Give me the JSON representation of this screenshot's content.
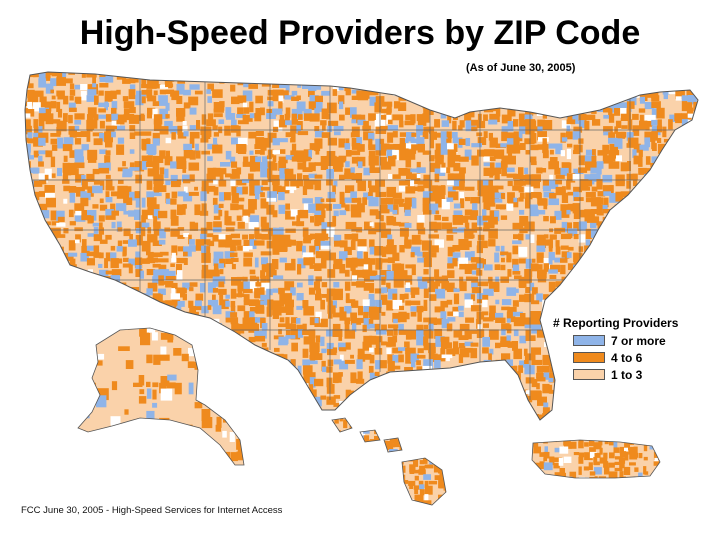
{
  "title": "High-Speed Providers by ZIP Code",
  "subtitle": "(As of June 30, 2005)",
  "source": "FCC June 30, 2005 - High-Speed Services for Internet Access",
  "legend": {
    "title": "# Reporting Providers",
    "items": [
      {
        "label": "7 or more",
        "color": "#8fb4e8"
      },
      {
        "label": "4 to 6",
        "color": "#ef8a1d"
      },
      {
        "label": "1 to 3",
        "color": "#fad2aa"
      }
    ]
  },
  "colors": {
    "low": "#fad2aa",
    "mid": "#ef8a1d",
    "high": "#8fb4e8",
    "none": "#ffffff",
    "border": "#7a7a7a"
  }
}
